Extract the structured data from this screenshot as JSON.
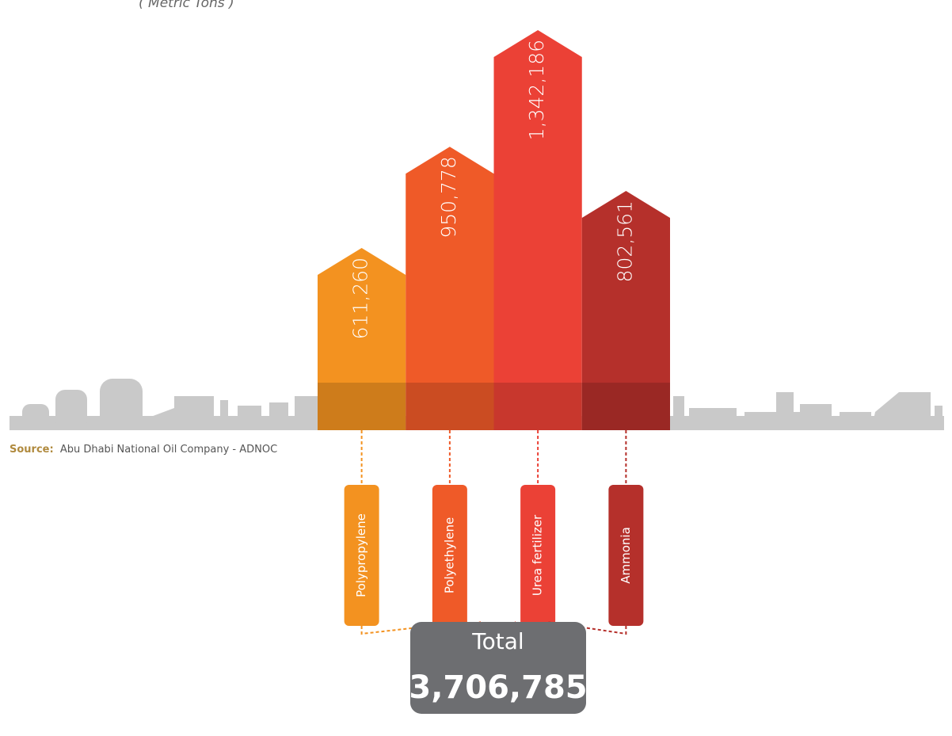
{
  "chart_data": {
    "type": "arrow-bar",
    "subtitle": "( Metric Tons )",
    "categories": [
      "Polypropylene",
      "Polyethylene",
      "Urea fertilizer",
      "Ammonia"
    ],
    "values": [
      611260,
      950778,
      1342186,
      802561
    ],
    "value_labels": [
      "611,260",
      "950,778",
      "1,342,186",
      "802,561"
    ],
    "colors": [
      "#f39220",
      "#ef5a28",
      "#eb4136",
      "#b5302b"
    ],
    "total_title": "Total",
    "total": {
      "value": 3706785,
      "label": "3,706,785"
    },
    "source_label": "Source:",
    "source": "Abu Dhabi National Oil Company - ADNOC"
  }
}
